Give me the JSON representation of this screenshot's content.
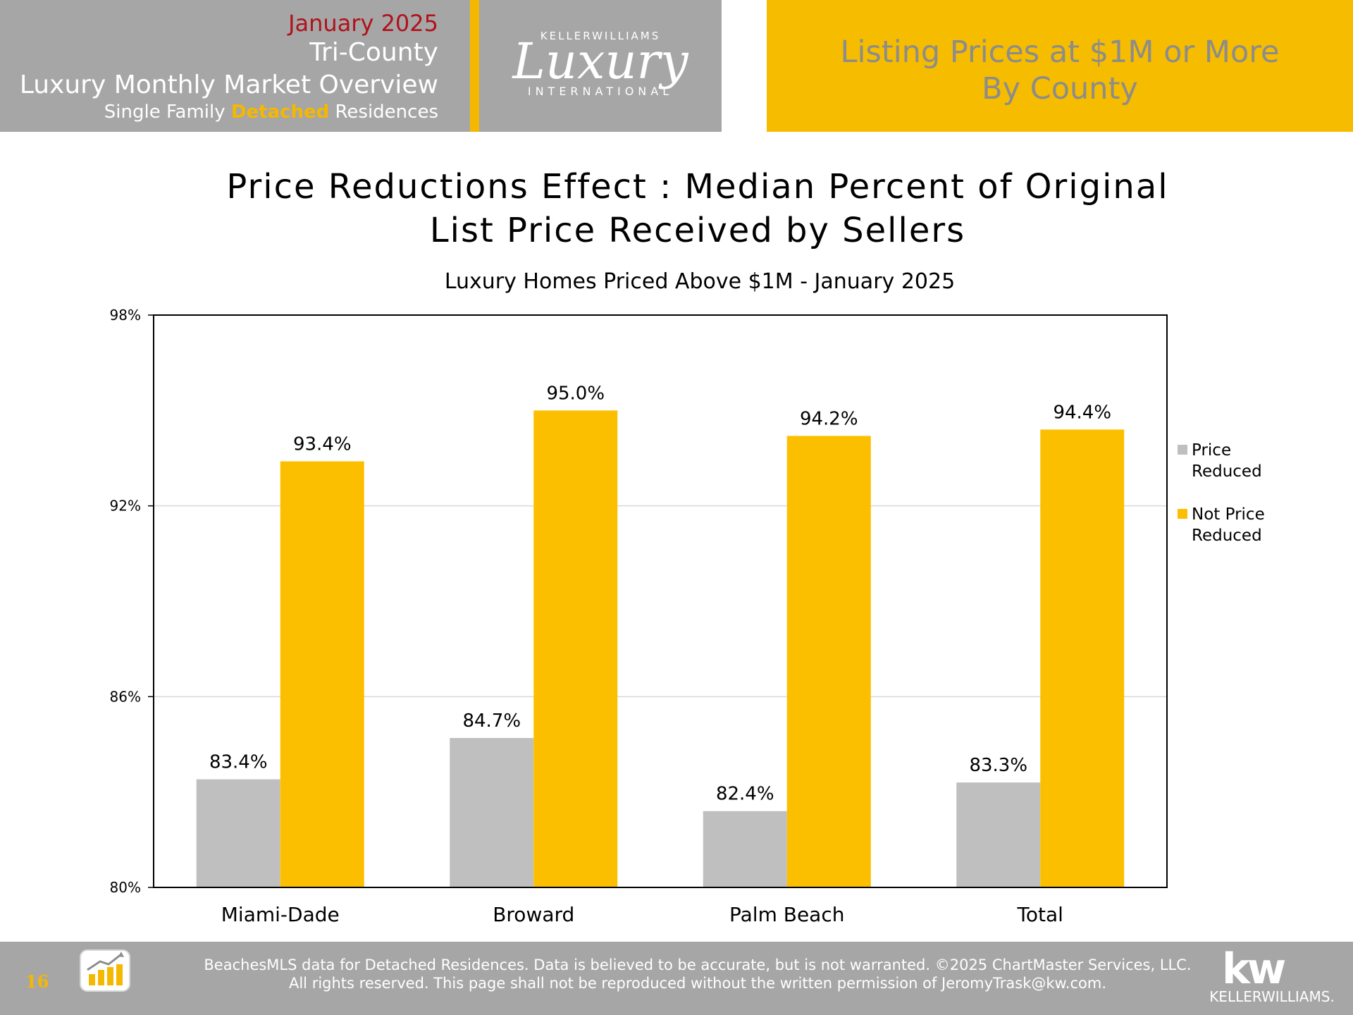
{
  "header": {
    "date": "January 2025",
    "region": "Tri-County",
    "overview": "Luxury Monthly Market Overview",
    "subtitle_pre": "Single Family ",
    "subtitle_highlight": "Detached",
    "subtitle_post": " Residences",
    "logo": {
      "brand_top": "KELLERWILLIAMS",
      "brand_script": "Luxury",
      "brand_bottom": "INTERNATIONAL"
    },
    "right_title_line1": "Listing Prices at $1M or More",
    "right_title_line2": "By County"
  },
  "chart_data": {
    "type": "bar",
    "title_line1": "Price Reductions Effect : Median Percent of Original",
    "title_line2": "List Price Received by Sellers",
    "subtitle": "Luxury Homes Priced Above $1M - January 2025",
    "xlabel": "",
    "ylabel": "",
    "categories": [
      "Miami-Dade",
      "Broward",
      "Palm Beach",
      "Total"
    ],
    "series": [
      {
        "name": "Price Reduced",
        "color": "#bfbfbf",
        "values": [
          83.4,
          84.7,
          82.4,
          83.3
        ],
        "labels": [
          "83.4%",
          "84.7%",
          "82.4%",
          "83.3%"
        ]
      },
      {
        "name": "Not Price Reduced",
        "color": "#fcbf00",
        "values": [
          93.4,
          95.0,
          94.2,
          94.4
        ],
        "labels": [
          "93.4%",
          "95.0%",
          "94.2%",
          "94.4%"
        ]
      }
    ],
    "ylim": [
      80,
      98
    ],
    "yticks": [
      80,
      86,
      92,
      98
    ],
    "ytick_labels": [
      "80%",
      "86%",
      "92%",
      "98%"
    ],
    "grid": true,
    "legend_position": "right",
    "legend": [
      {
        "line1": "Price",
        "line2": "Reduced",
        "color": "#bfbfbf"
      },
      {
        "line1": "Not Price",
        "line2": "Reduced",
        "color": "#fcbf00"
      }
    ]
  },
  "footer": {
    "page_number": "16",
    "chartmaster_logo_text": "ChartMaster Services, LLC",
    "line1": "BeachesMLS data for Detached Residences.  Data is believed to be accurate, but is not warranted.   ©2025  ChartMaster Services, LLC.",
    "line2": "All rights reserved. This page shall not be reproduced without the written permission of JeromyTrask@kw.com.",
    "kw_mark": "kw",
    "kw_word": "KELLERWILLIAMS."
  }
}
